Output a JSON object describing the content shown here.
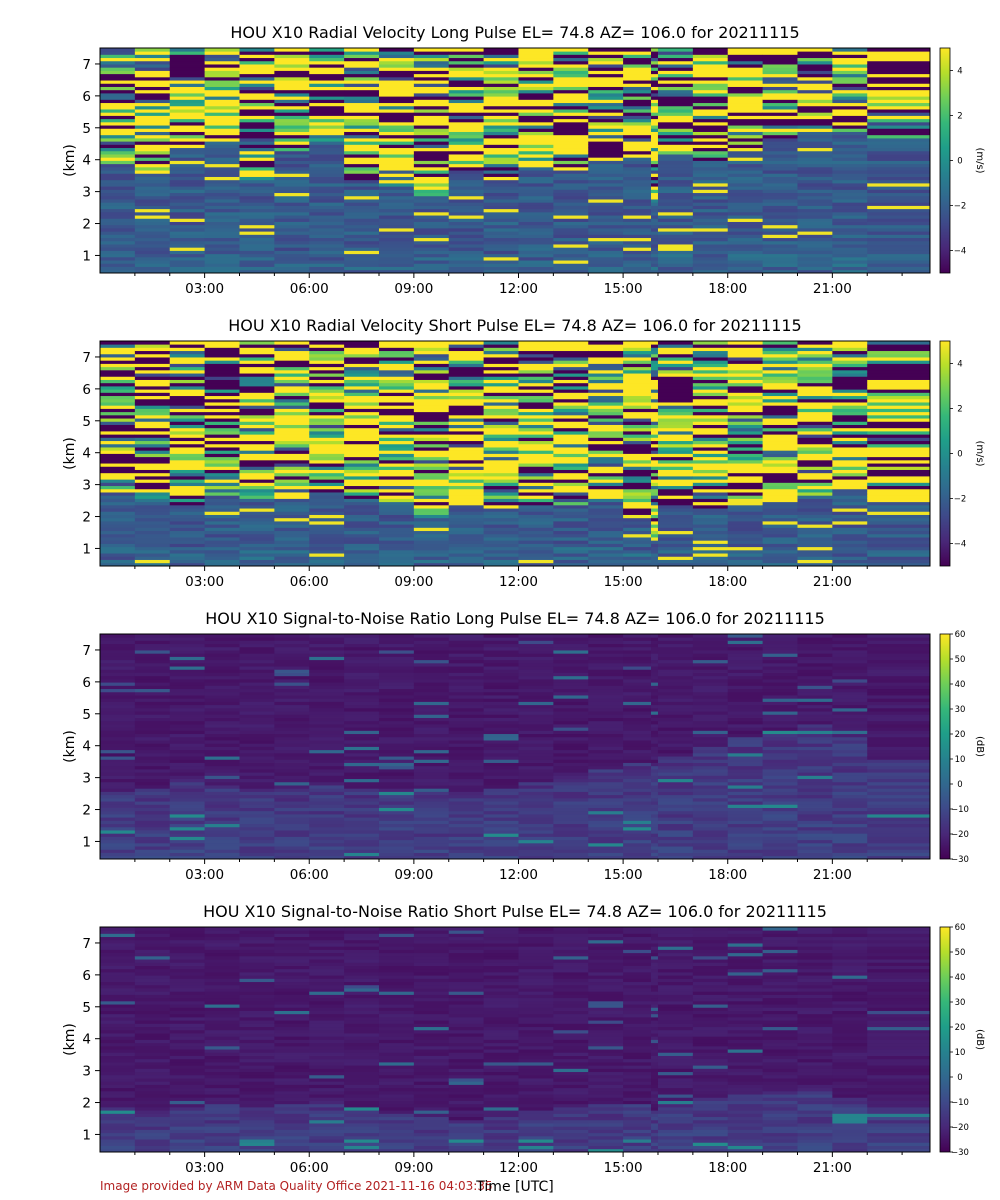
{
  "figure": {
    "xlabel": "Time [UTC]",
    "credit": "Image provided by ARM Data Quality Office 2021-11-16 04:03:35"
  },
  "chart_data": [
    {
      "type": "heatmap",
      "title": "HOU X10 Radial Velocity Long Pulse EL= 74.8 AZ= 106.0 for 20211115",
      "ylabel": "(km)",
      "colorbar_label": "(m/s)",
      "colormap": "viridis",
      "x_ticks": [
        "03:00",
        "06:00",
        "09:00",
        "12:00",
        "15:00",
        "18:00",
        "21:00"
      ],
      "x_tick_hours": [
        3,
        6,
        9,
        12,
        15,
        18,
        21
      ],
      "xlim_hours": [
        0,
        23.8
      ],
      "y_ticks": [
        1,
        2,
        3,
        4,
        5,
        6,
        7
      ],
      "ylim_km": [
        0.45,
        7.5
      ],
      "colorbar_ticks": [
        "4",
        "2",
        "0",
        "−2",
        "−4"
      ],
      "colorbar_tick_values": [
        4,
        2,
        0,
        -2,
        -4
      ],
      "vmin": -5,
      "vmax": 5,
      "time_bins_hours": [
        0,
        1,
        2,
        3,
        4,
        5,
        6,
        7,
        8,
        9,
        10,
        11,
        12,
        13,
        14,
        15,
        15.8,
        16,
        17,
        18,
        19,
        20,
        21,
        22,
        23.8
      ],
      "noise_base_km": [
        3.8,
        3.5,
        4.3,
        4.5,
        3.3,
        4.2,
        4.5,
        3.3,
        3.0,
        2.8,
        3.6,
        3.3,
        3.7,
        3.6,
        3.9,
        3.9,
        2.6,
        4.1,
        3.9,
        4.3,
        4.6,
        4.8,
        4.8,
        4.5
      ]
    },
    {
      "type": "heatmap",
      "title": "HOU X10 Radial Velocity Short Pulse EL= 74.8 AZ= 106.0 for 20211115",
      "ylabel": "(km)",
      "colorbar_label": "(m/s)",
      "colormap": "viridis",
      "x_ticks": [
        "03:00",
        "06:00",
        "09:00",
        "12:00",
        "15:00",
        "18:00",
        "21:00"
      ],
      "x_tick_hours": [
        3,
        6,
        9,
        12,
        15,
        18,
        21
      ],
      "xlim_hours": [
        0,
        23.8
      ],
      "y_ticks": [
        1,
        2,
        3,
        4,
        5,
        6,
        7
      ],
      "ylim_km": [
        0.45,
        7.5
      ],
      "colorbar_ticks": [
        "4",
        "2",
        "0",
        "−2",
        "−4"
      ],
      "colorbar_tick_values": [
        4,
        2,
        0,
        -2,
        -4
      ],
      "vmin": -5,
      "vmax": 5,
      "time_bins_hours": [
        0,
        1,
        2,
        3,
        4,
        5,
        6,
        7,
        8,
        9,
        10,
        11,
        12,
        13,
        14,
        15,
        15.8,
        16,
        17,
        18,
        19,
        20,
        21,
        22,
        23.8
      ],
      "noise_base_km": [
        2.7,
        2.4,
        2.3,
        2.6,
        2.5,
        2.4,
        2.7,
        2.5,
        2.4,
        1.9,
        2.3,
        2.2,
        2.3,
        2.3,
        2.4,
        2.0,
        1.3,
        2.3,
        2.2,
        2.5,
        2.4,
        2.6,
        2.7,
        2.4
      ]
    },
    {
      "type": "heatmap",
      "title": "HOU X10 Signal-to-Noise Ratio Long Pulse EL= 74.8 AZ= 106.0 for 20211115",
      "ylabel": "(km)",
      "colorbar_label": "(dB)",
      "colormap": "viridis",
      "x_ticks": [
        "03:00",
        "06:00",
        "09:00",
        "12:00",
        "15:00",
        "18:00",
        "21:00"
      ],
      "x_tick_hours": [
        3,
        6,
        9,
        12,
        15,
        18,
        21
      ],
      "xlim_hours": [
        0,
        23.8
      ],
      "y_ticks": [
        1,
        2,
        3,
        4,
        5,
        6,
        7
      ],
      "ylim_km": [
        0.45,
        7.5
      ],
      "colorbar_ticks": [
        "60",
        "50",
        "40",
        "30",
        "20",
        "10",
        "0",
        "−10",
        "−20",
        "−30"
      ],
      "colorbar_tick_values": [
        60,
        50,
        40,
        30,
        20,
        10,
        0,
        -10,
        -20,
        -30
      ],
      "vmin": -30,
      "vmax": 60,
      "time_bins_hours": [
        0,
        1,
        2,
        3,
        4,
        5,
        6,
        7,
        8,
        9,
        10,
        11,
        12,
        13,
        14,
        15,
        15.8,
        16,
        17,
        18,
        19,
        20,
        21,
        22,
        23.8
      ],
      "boundary_layer_top_km": [
        2.5,
        2.6,
        2.9,
        2.7,
        2.6,
        2.6,
        2.7,
        2.6,
        2.6,
        2.5,
        2.5,
        2.6,
        2.8,
        3.0,
        3.2,
        3.4,
        3.3,
        3.6,
        3.9,
        4.2,
        4.4,
        4.6,
        4.2,
        3.5
      ]
    },
    {
      "type": "heatmap",
      "title": "HOU X10 Signal-to-Noise Ratio Short Pulse EL= 74.8 AZ= 106.0 for 20211115",
      "ylabel": "(km)",
      "colorbar_label": "(dB)",
      "colormap": "viridis",
      "x_ticks": [
        "03:00",
        "06:00",
        "09:00",
        "12:00",
        "15:00",
        "18:00",
        "21:00"
      ],
      "x_tick_hours": [
        3,
        6,
        9,
        12,
        15,
        18,
        21
      ],
      "xlim_hours": [
        0,
        23.8
      ],
      "y_ticks": [
        1,
        2,
        3,
        4,
        5,
        6,
        7
      ],
      "ylim_km": [
        0.45,
        7.5
      ],
      "colorbar_ticks": [
        "60",
        "50",
        "40",
        "30",
        "20",
        "10",
        "0",
        "−10",
        "−20",
        "−30"
      ],
      "colorbar_tick_values": [
        60,
        50,
        40,
        30,
        20,
        10,
        0,
        -10,
        -20,
        -30
      ],
      "vmin": -30,
      "vmax": 60,
      "time_bins_hours": [
        0,
        1,
        2,
        3,
        4,
        5,
        6,
        7,
        8,
        9,
        10,
        11,
        12,
        13,
        14,
        15,
        15.8,
        16,
        17,
        18,
        19,
        20,
        21,
        22,
        23.8
      ],
      "boundary_layer_top_km": [
        1.8,
        1.7,
        1.8,
        1.9,
        1.8,
        1.9,
        2.0,
        1.8,
        1.6,
        1.5,
        1.4,
        1.5,
        1.7,
        1.8,
        1.9,
        1.9,
        1.7,
        2.0,
        2.1,
        2.2,
        2.3,
        2.4,
        2.1,
        1.8
      ]
    }
  ]
}
